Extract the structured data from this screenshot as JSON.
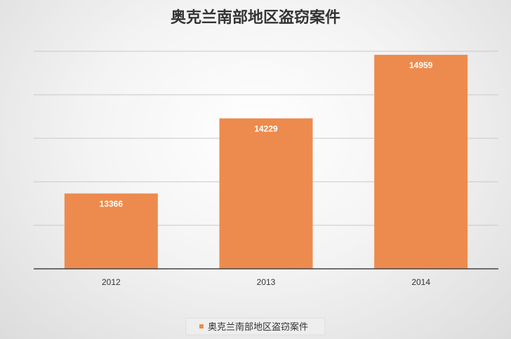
{
  "chart_data": {
    "type": "bar",
    "title": "奥克兰南部地区盗窃案件",
    "categories": [
      "2012",
      "2013",
      "2014"
    ],
    "series": [
      {
        "name": "奥克兰南部地区盗窃案件",
        "values": [
          13366,
          14229,
          14959
        ]
      }
    ],
    "ylim": [
      12500,
      15000
    ],
    "ystep": 500,
    "grid": true,
    "legend": "bottom",
    "bar_color": "#ED8B4E",
    "data_labels": true
  }
}
